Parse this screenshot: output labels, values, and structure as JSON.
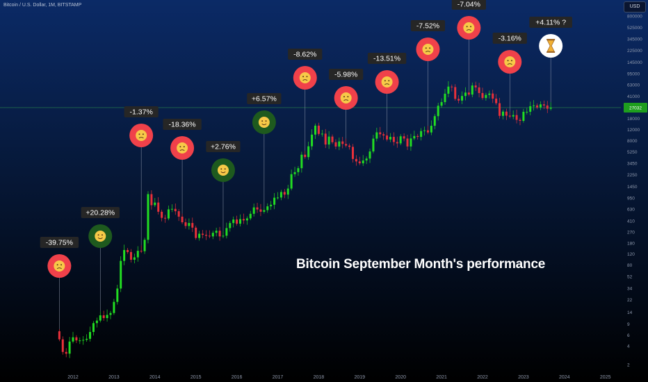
{
  "header": {
    "symbol_line": "Bitcoin / U.S. Dollar, 1M, BITSTAMP",
    "currency": "USD"
  },
  "colors": {
    "bg_top": "#0b2a66",
    "bg_bottom": "#000000",
    "up_candle": "#22dd22",
    "down_candle": "#e8303a",
    "sad_face": "#f0414a",
    "happy_face": "#1e5a1e",
    "pending_face": "#ffffff",
    "label_bg": "#262626",
    "label_text": "#ffffff",
    "price_line": "#1f6b4a",
    "axis_text": "#8f99ad"
  },
  "chart_data": {
    "type": "candlestick",
    "title": "Bitcoin September Month's performance",
    "y_scale": "log",
    "y_ticks": [
      2,
      4,
      6,
      9,
      14,
      22,
      34,
      52,
      80,
      120,
      180,
      270,
      410,
      630,
      950,
      1450,
      2250,
      3450,
      5250,
      8000,
      12000,
      18000,
      41000,
      63000,
      95000,
      145000,
      225000,
      345000,
      525000,
      800000,
      1210000
    ],
    "y_tick_labels": [
      "2",
      "4",
      "6",
      "9",
      "14",
      "22",
      "34",
      "52",
      "80",
      "120",
      "180",
      "270",
      "410",
      "630",
      "950",
      "1450",
      "2250",
      "3450",
      "5250",
      "8000",
      "12000",
      "18000",
      "41000",
      "63000",
      "95000",
      "145000",
      "225000",
      "345000",
      "525000",
      "800000",
      "1210000"
    ],
    "x_ticks": [
      "2012",
      "2013",
      "2014",
      "2015",
      "2016",
      "2017",
      "2018",
      "2019",
      "2020",
      "2021",
      "2022",
      "2023",
      "2024",
      "2025"
    ],
    "current_price": 27000,
    "last_price_label": "27032",
    "september_returns": [
      {
        "year": 2011,
        "label": "-39.75%",
        "mood": "sad"
      },
      {
        "year": 2012,
        "label": "+20.28%",
        "mood": "happy"
      },
      {
        "year": 2013,
        "label": "-1.37%",
        "mood": "sad"
      },
      {
        "year": 2014,
        "label": "-18.36%",
        "mood": "sad"
      },
      {
        "year": 2015,
        "label": "+2.76%",
        "mood": "happy"
      },
      {
        "year": 2016,
        "label": "+6.57%",
        "mood": "happy"
      },
      {
        "year": 2017,
        "label": "-8.62%",
        "mood": "sad"
      },
      {
        "year": 2018,
        "label": "-5.98%",
        "mood": "sad"
      },
      {
        "year": 2019,
        "label": "-13.51%",
        "mood": "sad"
      },
      {
        "year": 2020,
        "label": "-7.52%",
        "mood": "sad"
      },
      {
        "year": 2021,
        "label": "-7.04%",
        "mood": "sad"
      },
      {
        "year": 2022,
        "label": "-3.16%",
        "mood": "sad"
      },
      {
        "year": 2023,
        "label": "+4.11% ?",
        "mood": "pending"
      }
    ],
    "monthly_closes": [
      {
        "t": "2011-09",
        "c": 5.1
      },
      {
        "t": "2011-10",
        "c": 3.2
      },
      {
        "t": "2011-11",
        "c": 3.0
      },
      {
        "t": "2011-12",
        "c": 4.7
      },
      {
        "t": "2012-01",
        "c": 5.5
      },
      {
        "t": "2012-02",
        "c": 4.9
      },
      {
        "t": "2012-03",
        "c": 4.9
      },
      {
        "t": "2012-04",
        "c": 5.0
      },
      {
        "t": "2012-05",
        "c": 5.2
      },
      {
        "t": "2012-06",
        "c": 6.7
      },
      {
        "t": "2012-07",
        "c": 9.3
      },
      {
        "t": "2012-08",
        "c": 10.2
      },
      {
        "t": "2012-09",
        "c": 12.4
      },
      {
        "t": "2012-10",
        "c": 11.2
      },
      {
        "t": "2012-11",
        "c": 12.6
      },
      {
        "t": "2012-12",
        "c": 13.5
      },
      {
        "t": "2013-01",
        "c": 20.4
      },
      {
        "t": "2013-02",
        "c": 33.4
      },
      {
        "t": "2013-03",
        "c": 93.0
      },
      {
        "t": "2013-04",
        "c": 139.0
      },
      {
        "t": "2013-05",
        "c": 129.0
      },
      {
        "t": "2013-06",
        "c": 97.0
      },
      {
        "t": "2013-07",
        "c": 106.0
      },
      {
        "t": "2013-08",
        "c": 135.0
      },
      {
        "t": "2013-09",
        "c": 133.0
      },
      {
        "t": "2013-10",
        "c": 203.0
      },
      {
        "t": "2013-11",
        "c": 1100.0
      },
      {
        "t": "2013-12",
        "c": 730.0
      },
      {
        "t": "2014-01",
        "c": 805.0
      },
      {
        "t": "2014-02",
        "c": 573.0
      },
      {
        "t": "2014-03",
        "c": 457.0
      },
      {
        "t": "2014-04",
        "c": 447.0
      },
      {
        "t": "2014-05",
        "c": 626.0
      },
      {
        "t": "2014-06",
        "c": 637.0
      },
      {
        "t": "2014-07",
        "c": 584.0
      },
      {
        "t": "2014-08",
        "c": 478.0
      },
      {
        "t": "2014-09",
        "c": 388.0
      },
      {
        "t": "2014-10",
        "c": 338.0
      },
      {
        "t": "2014-11",
        "c": 378.0
      },
      {
        "t": "2014-12",
        "c": 318.0
      },
      {
        "t": "2015-01",
        "c": 217.0
      },
      {
        "t": "2015-02",
        "c": 254.0
      },
      {
        "t": "2015-03",
        "c": 244.0
      },
      {
        "t": "2015-04",
        "c": 236.0
      },
      {
        "t": "2015-05",
        "c": 230.0
      },
      {
        "t": "2015-06",
        "c": 263.0
      },
      {
        "t": "2015-07",
        "c": 284.0
      },
      {
        "t": "2015-08",
        "c": 230.0
      },
      {
        "t": "2015-09",
        "c": 236.0
      },
      {
        "t": "2015-10",
        "c": 313.0
      },
      {
        "t": "2015-11",
        "c": 377.0
      },
      {
        "t": "2015-12",
        "c": 430.0
      },
      {
        "t": "2016-01",
        "c": 368.0
      },
      {
        "t": "2016-02",
        "c": 437.0
      },
      {
        "t": "2016-03",
        "c": 416.0
      },
      {
        "t": "2016-04",
        "c": 448.0
      },
      {
        "t": "2016-05",
        "c": 531.0
      },
      {
        "t": "2016-06",
        "c": 673.0
      },
      {
        "t": "2016-07",
        "c": 624.0
      },
      {
        "t": "2016-08",
        "c": 573.0
      },
      {
        "t": "2016-09",
        "c": 608.0
      },
      {
        "t": "2016-10",
        "c": 700.0
      },
      {
        "t": "2016-11",
        "c": 742.0
      },
      {
        "t": "2016-12",
        "c": 963.0
      },
      {
        "t": "2017-01",
        "c": 970.0
      },
      {
        "t": "2017-02",
        "c": 1190.0
      },
      {
        "t": "2017-03",
        "c": 1080.0
      },
      {
        "t": "2017-04",
        "c": 1350.0
      },
      {
        "t": "2017-05",
        "c": 2300.0
      },
      {
        "t": "2017-06",
        "c": 2480.0
      },
      {
        "t": "2017-07",
        "c": 2870.0
      },
      {
        "t": "2017-08",
        "c": 4730.0
      },
      {
        "t": "2017-09",
        "c": 4330.0
      },
      {
        "t": "2017-10",
        "c": 6450.0
      },
      {
        "t": "2017-11",
        "c": 9950.0
      },
      {
        "t": "2017-12",
        "c": 13850.0
      },
      {
        "t": "2018-01",
        "c": 10200.0
      },
      {
        "t": "2018-02",
        "c": 10300.0
      },
      {
        "t": "2018-03",
        "c": 6900.0
      },
      {
        "t": "2018-04",
        "c": 9250.0
      },
      {
        "t": "2018-05",
        "c": 7500.0
      },
      {
        "t": "2018-06",
        "c": 6390.0
      },
      {
        "t": "2018-07",
        "c": 7730.0
      },
      {
        "t": "2018-08",
        "c": 7030.0
      },
      {
        "t": "2018-09",
        "c": 6630.0
      },
      {
        "t": "2018-10",
        "c": 6320.0
      },
      {
        "t": "2018-11",
        "c": 4040.0
      },
      {
        "t": "2018-12",
        "c": 3690.0
      },
      {
        "t": "2019-01",
        "c": 3440.0
      },
      {
        "t": "2019-02",
        "c": 3820.0
      },
      {
        "t": "2019-03",
        "c": 4100.0
      },
      {
        "t": "2019-04",
        "c": 5330.0
      },
      {
        "t": "2019-05",
        "c": 8570.0
      },
      {
        "t": "2019-06",
        "c": 10820.0
      },
      {
        "t": "2019-07",
        "c": 10080.0
      },
      {
        "t": "2019-08",
        "c": 9620.0
      },
      {
        "t": "2019-09",
        "c": 8300.0
      },
      {
        "t": "2019-10",
        "c": 9150.0
      },
      {
        "t": "2019-11",
        "c": 7570.0
      },
      {
        "t": "2019-12",
        "c": 7190.0
      },
      {
        "t": "2020-01",
        "c": 9350.0
      },
      {
        "t": "2020-02",
        "c": 8600.0
      },
      {
        "t": "2020-03",
        "c": 6410.0
      },
      {
        "t": "2020-04",
        "c": 8630.0
      },
      {
        "t": "2020-05",
        "c": 9450.0
      },
      {
        "t": "2020-06",
        "c": 9140.0
      },
      {
        "t": "2020-07",
        "c": 11350.0
      },
      {
        "t": "2020-08",
        "c": 11650.0
      },
      {
        "t": "2020-09",
        "c": 10780.0
      },
      {
        "t": "2020-10",
        "c": 13800.0
      },
      {
        "t": "2020-11",
        "c": 19700.0
      },
      {
        "t": "2020-12",
        "c": 28990.0
      },
      {
        "t": "2021-01",
        "c": 33100.0
      },
      {
        "t": "2021-02",
        "c": 45200.0
      },
      {
        "t": "2021-03",
        "c": 58800.0
      },
      {
        "t": "2021-04",
        "c": 57700.0
      },
      {
        "t": "2021-05",
        "c": 37300.0
      },
      {
        "t": "2021-06",
        "c": 35040.0
      },
      {
        "t": "2021-07",
        "c": 41500.0
      },
      {
        "t": "2021-08",
        "c": 47100.0
      },
      {
        "t": "2021-09",
        "c": 43800.0
      },
      {
        "t": "2021-10",
        "c": 61300.0
      },
      {
        "t": "2021-11",
        "c": 57000.0
      },
      {
        "t": "2021-12",
        "c": 46300.0
      },
      {
        "t": "2022-01",
        "c": 38500.0
      },
      {
        "t": "2022-02",
        "c": 43200.0
      },
      {
        "t": "2022-03",
        "c": 45500.0
      },
      {
        "t": "2022-04",
        "c": 37700.0
      },
      {
        "t": "2022-05",
        "c": 31800.0
      },
      {
        "t": "2022-06",
        "c": 19900.0
      },
      {
        "t": "2022-07",
        "c": 23300.0
      },
      {
        "t": "2022-08",
        "c": 20050.0
      },
      {
        "t": "2022-09",
        "c": 19420.0
      },
      {
        "t": "2022-10",
        "c": 20500.0
      },
      {
        "t": "2022-11",
        "c": 17170.0
      },
      {
        "t": "2022-12",
        "c": 16540.0
      },
      {
        "t": "2023-01",
        "c": 23130.0
      },
      {
        "t": "2023-02",
        "c": 23150.0
      },
      {
        "t": "2023-03",
        "c": 28470.0
      },
      {
        "t": "2023-04",
        "c": 29250.0
      },
      {
        "t": "2023-05",
        "c": 27220.0
      },
      {
        "t": "2023-06",
        "c": 30480.0
      },
      {
        "t": "2023-07",
        "c": 29230.0
      },
      {
        "t": "2023-08",
        "c": 25940.0
      },
      {
        "t": "2023-09",
        "c": 27000.0
      }
    ]
  }
}
